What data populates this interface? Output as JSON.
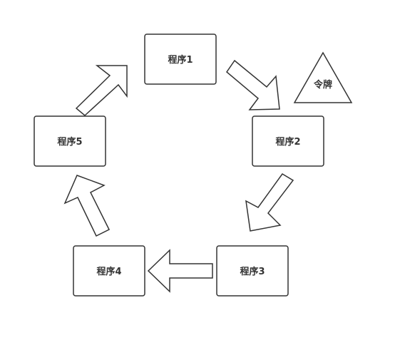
{
  "nodes": {
    "program1": "程序1",
    "program2": "程序2",
    "program3": "程序3",
    "program4": "程序4",
    "program5": "程序5",
    "token": "令牌"
  },
  "colors": {
    "stroke": "#333333",
    "fill": "#ffffff",
    "text": "#333333",
    "background": "#ffffff"
  }
}
